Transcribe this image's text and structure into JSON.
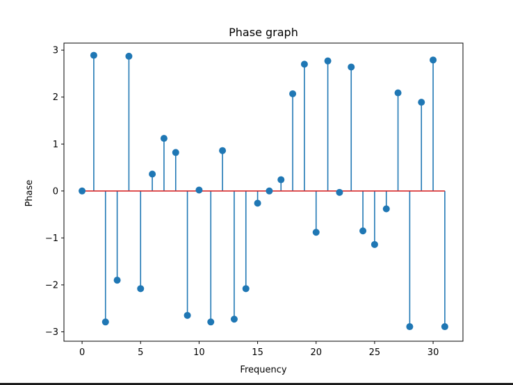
{
  "chart_data": {
    "type": "stem",
    "title": "Phase graph",
    "xlabel": "Frequency",
    "ylabel": "Phase",
    "xlim": [
      -1.55,
      32.55
    ],
    "ylim": [
      -3.2,
      3.15
    ],
    "xticks": [
      0,
      5,
      10,
      15,
      20,
      25,
      30
    ],
    "yticks": [
      -3,
      -2,
      -1,
      0,
      1,
      2,
      3
    ],
    "ytick_labels": [
      "−3",
      "−2",
      "−1",
      "0",
      "1",
      "2",
      "3"
    ],
    "grid": false,
    "x": [
      0,
      1,
      2,
      3,
      4,
      5,
      6,
      7,
      8,
      9,
      10,
      11,
      12,
      13,
      14,
      15,
      16,
      17,
      18,
      19,
      20,
      21,
      22,
      23,
      24,
      25,
      26,
      27,
      28,
      29,
      30,
      31
    ],
    "values": [
      0.0,
      2.89,
      -2.79,
      -1.9,
      2.87,
      -2.08,
      0.36,
      1.12,
      0.82,
      -2.65,
      0.02,
      -2.79,
      0.86,
      -2.73,
      -2.08,
      -0.26,
      0.0,
      0.24,
      2.07,
      2.7,
      -0.88,
      2.77,
      -0.03,
      2.64,
      -0.85,
      -1.14,
      -0.38,
      2.09,
      -2.89,
      1.89,
      2.79,
      -2.89
    ],
    "baseline": 0,
    "colors": {
      "stem": "#1f77b4",
      "baseline": "#d62728"
    }
  }
}
